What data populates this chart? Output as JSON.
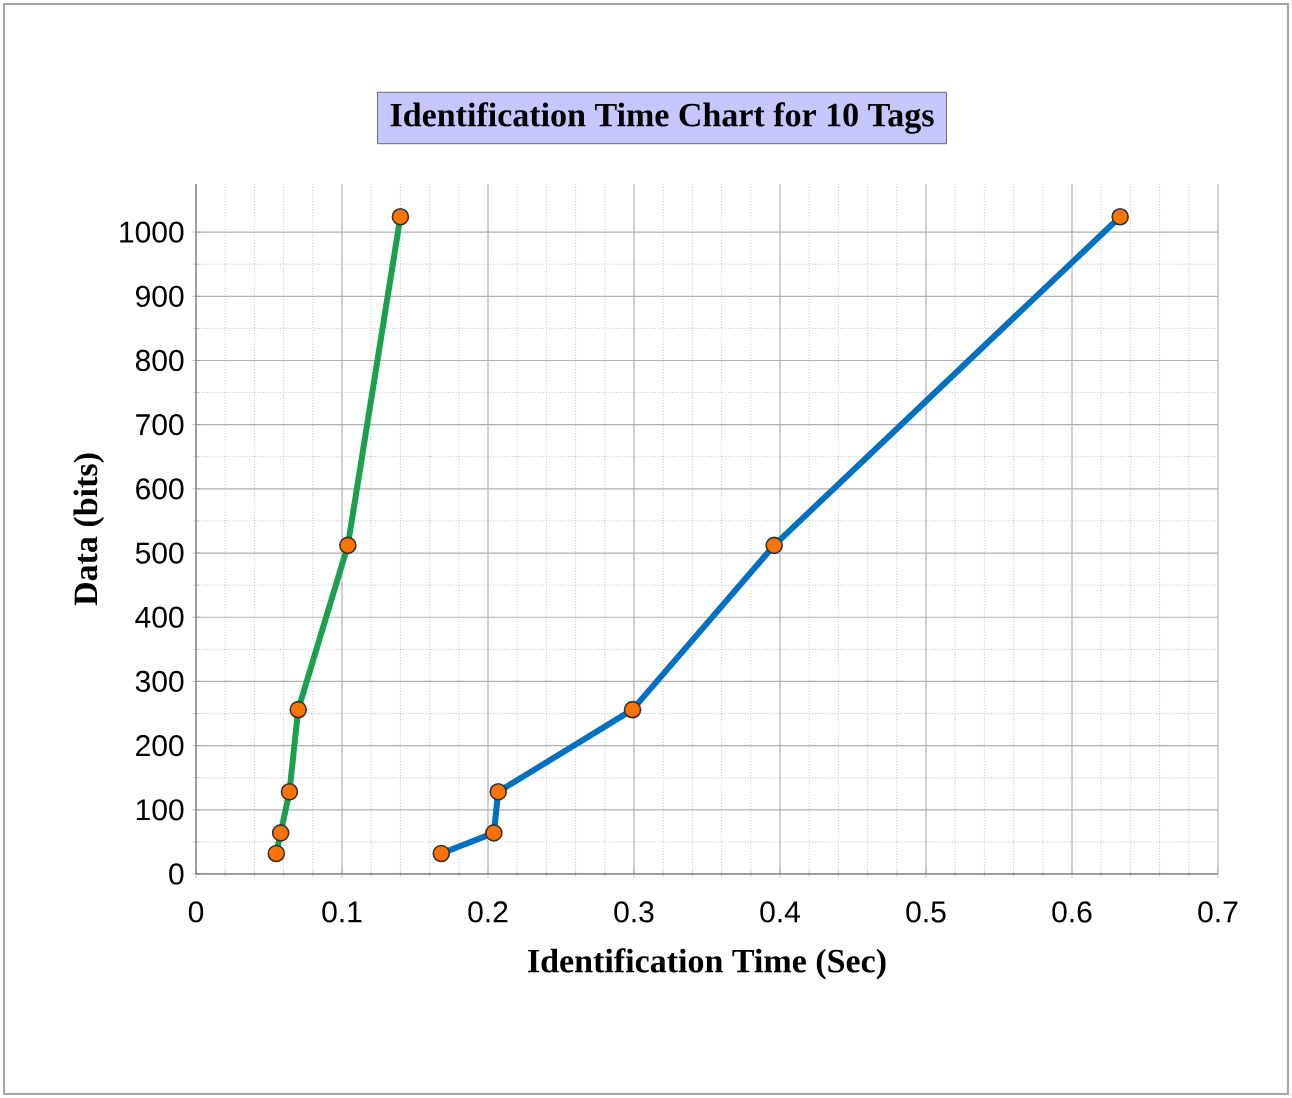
{
  "chart_data": {
    "type": "line",
    "title": "Identification Time Chart for 10 Tags",
    "xlabel": "Identification Time (Sec)",
    "ylabel": "Data (bits)",
    "series": [
      {
        "color": "#1aa050",
        "x": [
          0.055,
          0.058,
          0.064,
          0.07,
          0.104,
          0.14
        ],
        "values": [
          32,
          64,
          128,
          256,
          512,
          1024
        ]
      },
      {
        "color": "#0070c0",
        "x": [
          0.168,
          0.204,
          0.207,
          0.299,
          0.396,
          0.633
        ],
        "values": [
          32,
          64,
          128,
          256,
          512,
          1024
        ]
      }
    ],
    "xlim": [
      0,
      0.7
    ],
    "ylim": [
      0,
      1075
    ],
    "xticks": [
      0,
      0.1,
      0.2,
      0.3,
      0.4,
      0.5,
      0.6,
      0.7
    ],
    "yticks": [
      0,
      100,
      200,
      300,
      400,
      500,
      600,
      700,
      800,
      900,
      1000
    ],
    "grid": true,
    "marker": "circle",
    "line_style": "solid"
  }
}
